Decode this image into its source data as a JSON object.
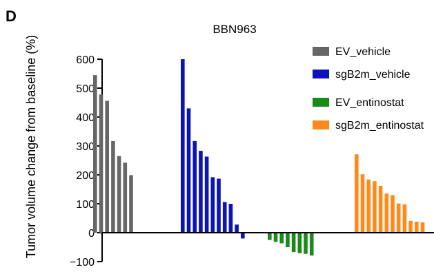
{
  "panel_label": "D",
  "chart_data": {
    "type": "bar",
    "title": "BBN963",
    "xlabel": "",
    "ylabel": "Tumor volume change from baseline (%)",
    "ylim": [
      -100,
      600
    ],
    "yticks": [
      600,
      500,
      400,
      300,
      200,
      100,
      0,
      -100
    ],
    "grid": false,
    "legend_position": "top-right",
    "series": [
      {
        "name": "EV_vehicle",
        "color": "#666666",
        "values": [
          545,
          478,
          456,
          317,
          265,
          242,
          199
        ]
      },
      {
        "name": "sgB2m_vehicle",
        "color": "#0a14b8",
        "values": [
          600,
          430,
          317,
          283,
          263,
          192,
          187,
          106,
          100,
          28,
          -20
        ]
      },
      {
        "name": "EV_entinostat",
        "color": "#1a8a1a",
        "values": [
          -25,
          -32,
          -37,
          -50,
          -67,
          -71,
          -73,
          -79
        ]
      },
      {
        "name": "sgB2m_entinostat",
        "color": "#ff8a1a",
        "values": [
          271,
          202,
          184,
          178,
          162,
          135,
          130,
          101,
          98,
          41,
          38,
          36
        ]
      }
    ]
  }
}
